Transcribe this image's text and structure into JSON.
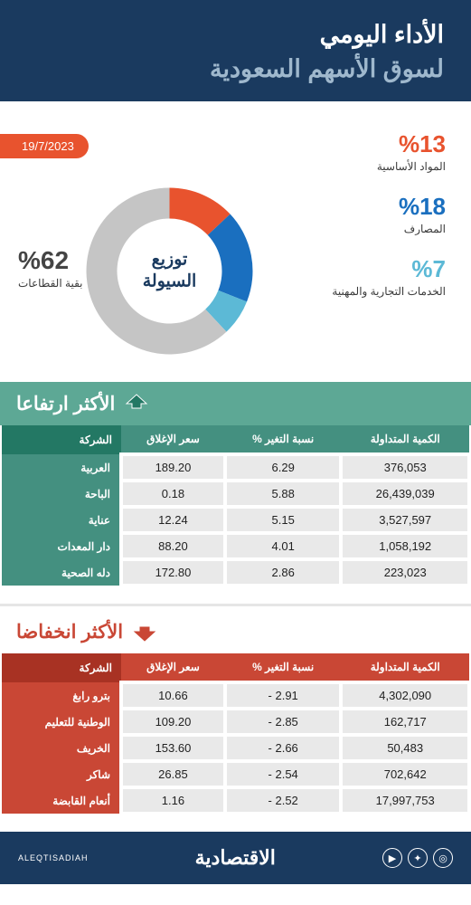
{
  "header": {
    "title_line1": "الأداء اليومي",
    "title_line2": "لسوق الأسهم السعودية"
  },
  "date_badge": "19/7/2023",
  "donut": {
    "center_line1": "توزيع",
    "center_line2": "السيولة",
    "size": 195,
    "inner_radius": 58,
    "outer_radius": 92,
    "background_color": "#ffffff",
    "slices": [
      {
        "key": "materials",
        "label": "المواد الأساسية",
        "pct": 13,
        "pct_text": "%13",
        "color": "#e8532e"
      },
      {
        "key": "banks",
        "label": "المصارف",
        "pct": 18,
        "pct_text": "%18",
        "color": "#1a6fbf"
      },
      {
        "key": "services",
        "label": "الخدمات التجارية والمهنية",
        "pct": 7,
        "pct_text": "%7",
        "color": "#5cb9d6"
      },
      {
        "key": "rest",
        "label": "بقية القطاعات",
        "pct": 62,
        "pct_text": "%62",
        "color": "#c5c5c5"
      }
    ],
    "start_angle": -90
  },
  "gainers": {
    "title": "الأكثر ارتفاعا",
    "header_bg": "#5da895",
    "th_bg": "#449080",
    "th_company_bg": "#237864",
    "row_company_bg": "#449080",
    "columns": {
      "company": "الشركة",
      "close": "سعر الإغلاق",
      "change": "نسبة التغير %",
      "volume": "الكمية المتداولة"
    },
    "rows": [
      {
        "company": "العربية",
        "close": "189.20",
        "change": "6.29",
        "volume": "376,053"
      },
      {
        "company": "الباحة",
        "close": "0.18",
        "change": "5.88",
        "volume": "26,439,039"
      },
      {
        "company": "عناية",
        "close": "12.24",
        "change": "5.15",
        "volume": "3,527,597"
      },
      {
        "company": "دار المعدات",
        "close": "88.20",
        "change": "4.01",
        "volume": "1,058,192"
      },
      {
        "company": "دله الصحية",
        "close": "172.80",
        "change": "2.86",
        "volume": "223,023"
      }
    ]
  },
  "losers": {
    "title": "الأكثر انخفاضا",
    "header_color": "#c94735",
    "th_bg": "#c94735",
    "th_company_bg": "#a83223",
    "row_company_bg": "#c94735",
    "columns": {
      "company": "الشركة",
      "close": "سعر الإغلاق",
      "change": "نسبة التغير %",
      "volume": "الكمية المتداولة"
    },
    "rows": [
      {
        "company": "بترو رابغ",
        "close": "10.66",
        "change": "- 2.91",
        "volume": "4,302,090"
      },
      {
        "company": "الوطنية للتعليم",
        "close": "109.20",
        "change": "- 2.85",
        "volume": "162,717"
      },
      {
        "company": "الخريف",
        "close": "153.60",
        "change": "- 2.66",
        "volume": "50,483"
      },
      {
        "company": "شاكر",
        "close": "26.85",
        "change": "- 2.54",
        "volume": "702,642"
      },
      {
        "company": "أنعام القابضة",
        "close": "1.16",
        "change": "- 2.52",
        "volume": "17,997,753"
      }
    ]
  },
  "footer": {
    "brand": "الاقتصادية",
    "handle": "ALEQTISADIAH"
  },
  "colors": {
    "navy": "#1a3a5f",
    "green": "#449080",
    "green_dark": "#237864",
    "red": "#c94735",
    "red_dark": "#a83223",
    "orange": "#e8532e",
    "cell_bg": "#e9e9e9"
  }
}
